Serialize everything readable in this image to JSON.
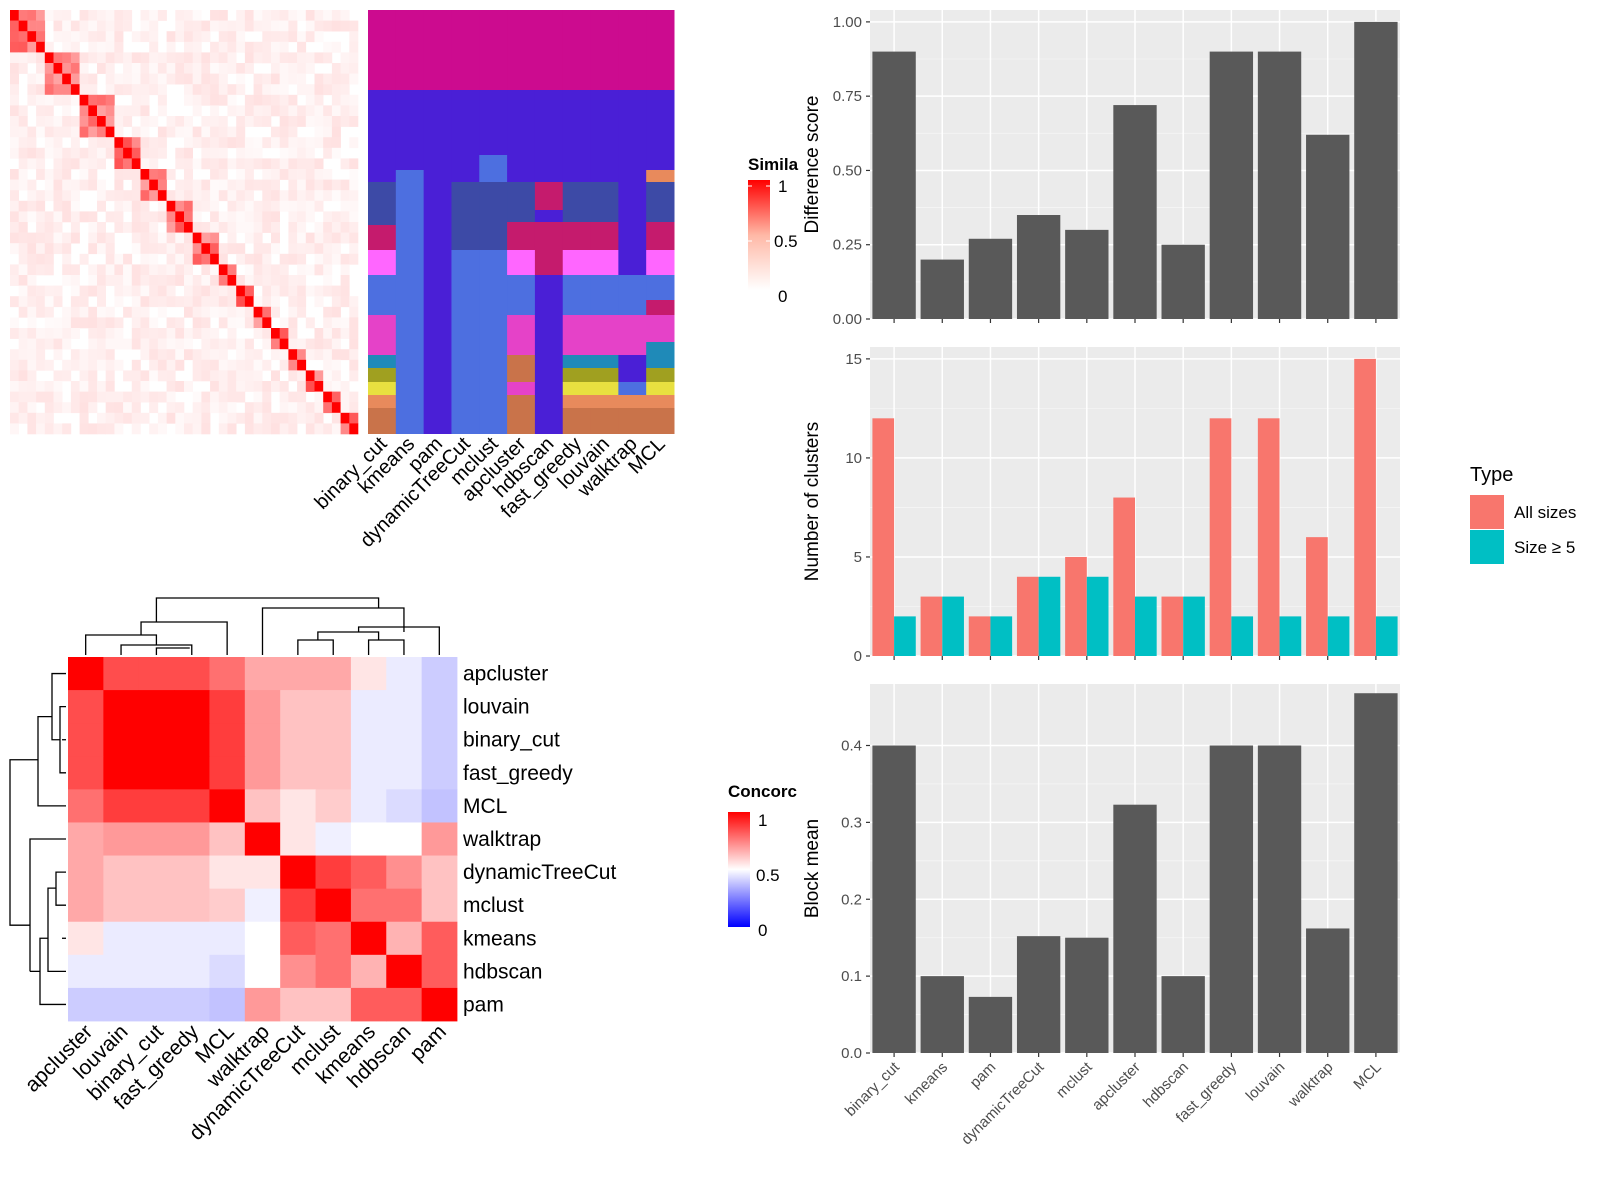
{
  "colors": {
    "panel_bg": "#ebebeb",
    "grid": "#ffffff",
    "bar": "#595959",
    "all_sizes": "#f8766d",
    "size_ge5": "#00bfc4",
    "heat_high": "#ff0000",
    "heat_mid": "#ffffff",
    "heat_low": "#0000ff"
  },
  "chart_data": [
    {
      "id": "similarity_heatmap",
      "type": "heatmap",
      "legend_title": "Simila",
      "legend_ticks": [
        "1",
        "0.5",
        "0"
      ],
      "n_items": 40,
      "cluster_blocks": [
        [
          0,
          4
        ],
        [
          4,
          8
        ],
        [
          8,
          12
        ],
        [
          12,
          15
        ],
        [
          15,
          18
        ],
        [
          18,
          21
        ],
        [
          21,
          24
        ],
        [
          24,
          26
        ],
        [
          26,
          28
        ],
        [
          28,
          30
        ],
        [
          30,
          32
        ],
        [
          32,
          34
        ],
        [
          34,
          36
        ],
        [
          36,
          38
        ],
        [
          38,
          40
        ]
      ]
    },
    {
      "id": "cluster_assignment_tracks",
      "type": "heatmap",
      "columns": [
        "binary_cut",
        "kmeans",
        "pam",
        "dynamicTreeCut",
        "mclust",
        "apcluster",
        "hdbscan",
        "fast_greedy",
        "louvain",
        "walktrap",
        "MCL"
      ]
    },
    {
      "id": "difference_score",
      "type": "bar",
      "categories": [
        "binary_cut",
        "kmeans",
        "pam",
        "dynamicTreeCut",
        "mclust",
        "apcluster",
        "hdbscan",
        "fast_greedy",
        "louvain",
        "walktrap",
        "MCL"
      ],
      "values": [
        0.9,
        0.2,
        0.27,
        0.35,
        0.3,
        0.72,
        0.25,
        0.9,
        0.9,
        0.62,
        1.0
      ],
      "ylabel": "Difference score",
      "ylim": [
        0,
        1.04
      ],
      "yticks": [
        "0.00",
        "0.25",
        "0.50",
        "0.75",
        "1.00"
      ],
      "ytick_values": [
        0,
        0.25,
        0.5,
        0.75,
        1.0
      ],
      "grid": true
    },
    {
      "id": "number_of_clusters",
      "type": "bar",
      "categories": [
        "binary_cut",
        "kmeans",
        "pam",
        "dynamicTreeCut",
        "mclust",
        "apcluster",
        "hdbscan",
        "fast_greedy",
        "louvain",
        "walktrap",
        "MCL"
      ],
      "series": [
        {
          "name": "All sizes",
          "values": [
            12,
            3,
            2,
            4,
            5,
            8,
            3,
            12,
            12,
            6,
            15
          ]
        },
        {
          "name": "Size ≥ 5",
          "values": [
            2,
            3,
            2,
            4,
            4,
            3,
            3,
            2,
            2,
            2,
            2
          ]
        }
      ],
      "ylabel": "Number of clusters",
      "ylim": [
        0,
        15.6
      ],
      "yticks": [
        "0",
        "5",
        "10",
        "15"
      ],
      "ytick_values": [
        0,
        5,
        10,
        15
      ],
      "legend_title": "Type",
      "legend_position": "right",
      "grid": true
    },
    {
      "id": "block_mean",
      "type": "bar",
      "categories": [
        "binary_cut",
        "kmeans",
        "pam",
        "dynamicTreeCut",
        "mclust",
        "apcluster",
        "hdbscan",
        "fast_greedy",
        "louvain",
        "walktrap",
        "MCL"
      ],
      "values": [
        0.4,
        0.1,
        0.073,
        0.152,
        0.15,
        0.323,
        0.1,
        0.4,
        0.4,
        0.162,
        0.468
      ],
      "ylabel": "Block mean",
      "ylim": [
        0,
        0.48
      ],
      "yticks": [
        "0.0",
        "0.1",
        "0.2",
        "0.3",
        "0.4"
      ],
      "ytick_values": [
        0,
        0.1,
        0.2,
        0.3,
        0.4
      ],
      "grid": true
    },
    {
      "id": "concordance_heatmap",
      "type": "heatmap",
      "legend_title": "Concorc",
      "legend_ticks": [
        "1",
        "0.5",
        "0"
      ],
      "rows": [
        "apcluster",
        "louvain",
        "binary_cut",
        "fast_greedy",
        "MCL",
        "walktrap",
        "dynamicTreeCut",
        "mclust",
        "kmeans",
        "hdbscan",
        "pam"
      ],
      "columns": [
        "apcluster",
        "louvain",
        "binary_cut",
        "fast_greedy",
        "MCL",
        "walktrap",
        "dynamicTreeCut",
        "mclust",
        "kmeans",
        "hdbscan",
        "pam"
      ],
      "values": [
        [
          1.0,
          0.85,
          0.85,
          0.85,
          0.78,
          0.67,
          0.67,
          0.67,
          0.55,
          0.46,
          0.4
        ],
        [
          0.85,
          1.0,
          1.0,
          1.0,
          0.88,
          0.7,
          0.62,
          0.62,
          0.46,
          0.46,
          0.4
        ],
        [
          0.85,
          1.0,
          1.0,
          1.0,
          0.88,
          0.7,
          0.62,
          0.62,
          0.46,
          0.46,
          0.4
        ],
        [
          0.85,
          1.0,
          1.0,
          1.0,
          0.88,
          0.7,
          0.62,
          0.62,
          0.46,
          0.46,
          0.4
        ],
        [
          0.78,
          0.88,
          0.88,
          0.88,
          1.0,
          0.62,
          0.55,
          0.6,
          0.46,
          0.43,
          0.38
        ],
        [
          0.67,
          0.7,
          0.7,
          0.7,
          0.62,
          1.0,
          0.55,
          0.47,
          0.5,
          0.5,
          0.7
        ],
        [
          0.67,
          0.62,
          0.62,
          0.62,
          0.55,
          0.55,
          1.0,
          0.88,
          0.82,
          0.72,
          0.62
        ],
        [
          0.67,
          0.62,
          0.62,
          0.62,
          0.6,
          0.47,
          0.88,
          1.0,
          0.78,
          0.78,
          0.62
        ],
        [
          0.55,
          0.46,
          0.46,
          0.46,
          0.46,
          0.5,
          0.82,
          0.78,
          1.0,
          0.65,
          0.82
        ],
        [
          0.46,
          0.46,
          0.46,
          0.46,
          0.43,
          0.5,
          0.72,
          0.78,
          0.65,
          1.0,
          0.82
        ],
        [
          0.4,
          0.4,
          0.4,
          0.4,
          0.38,
          0.7,
          0.62,
          0.62,
          0.82,
          0.82,
          1.0
        ]
      ]
    }
  ]
}
